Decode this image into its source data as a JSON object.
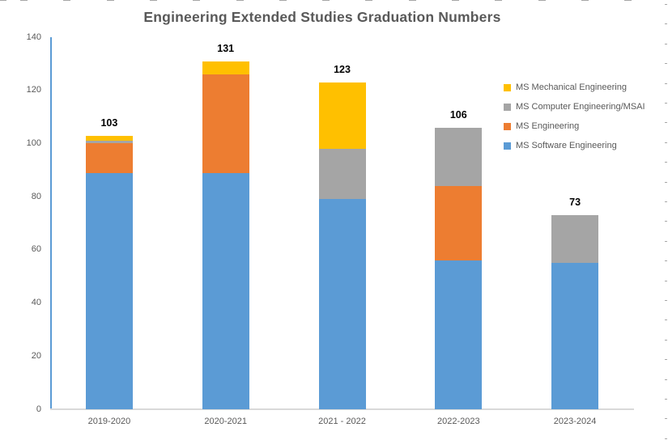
{
  "chart_data": {
    "type": "bar",
    "stacked": true,
    "title": "Engineering Extended Studies Graduation Numbers",
    "categories": [
      "2019-2020",
      "2020-2021",
      "2021 - 2022",
      "2022-2023",
      "2023-2024"
    ],
    "series": [
      {
        "name": "MS Software Engineering",
        "color": "#5B9BD5",
        "values": [
          89,
          89,
          79,
          56,
          55
        ]
      },
      {
        "name": "MS Engineering",
        "color": "#ED7D31",
        "values": [
          11,
          37,
          0,
          28,
          0
        ]
      },
      {
        "name": "MS Computer Engineering/MSAI",
        "color": "#A5A5A5",
        "values": [
          1,
          0,
          19,
          22,
          18
        ]
      },
      {
        "name": "MS Mechanical Engineering",
        "color": "#FFC000",
        "values": [
          2,
          5,
          25,
          0,
          0
        ]
      }
    ],
    "totals": [
      103,
      131,
      123,
      106,
      73
    ],
    "y_ticks": [
      0,
      20,
      40,
      60,
      80,
      100,
      120,
      140
    ],
    "ylim": [
      0,
      140
    ],
    "grid": false,
    "legend_position": "right",
    "legend_order": [
      "MS Mechanical Engineering",
      "MS Computer Engineering/MSAI",
      "MS Engineering",
      "MS Software Engineering"
    ]
  },
  "colors": {
    "title_text": "#595959",
    "axis_text": "#595959",
    "total_label_text": "#000000",
    "y_axis_line": "#5B9BD5",
    "x_axis_line": "#D9D9D9",
    "gridline_marks": "#A6A6A6",
    "background": "#FFFFFF"
  }
}
